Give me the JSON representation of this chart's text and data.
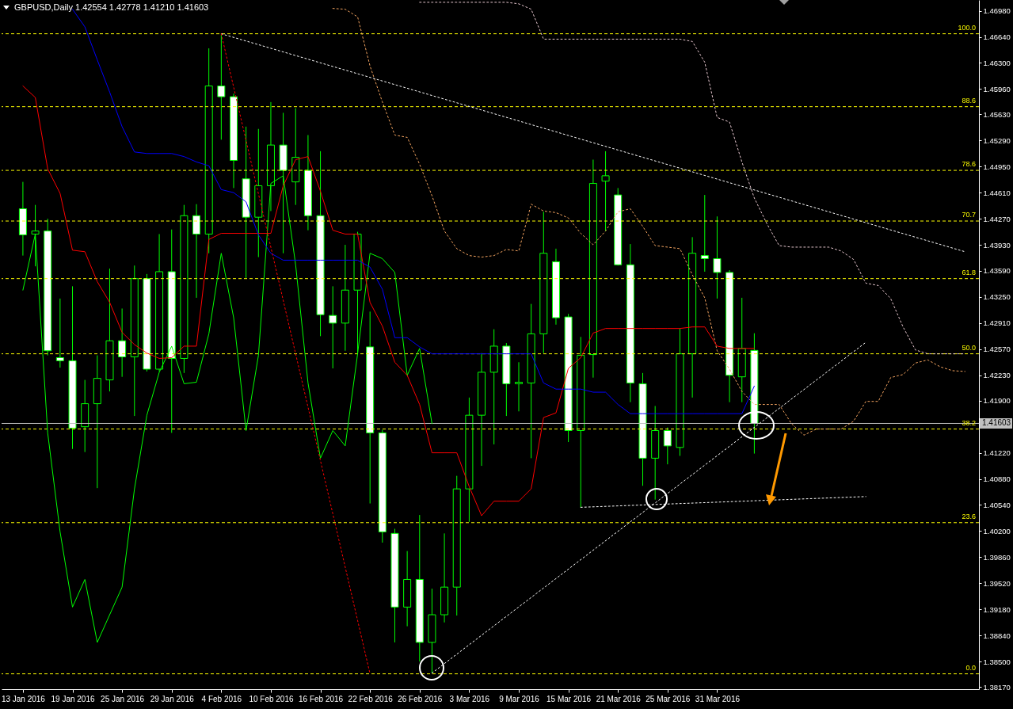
{
  "chart_data": {
    "type": "candlestick",
    "title": "GBPUSD,Daily  1.42554 1.42778 1.41210 1.41603",
    "categories": [
      "13 Jan 2016",
      null,
      null,
      null,
      "19 Jan 2016",
      null,
      null,
      null,
      "25 Jan 2016",
      null,
      null,
      null,
      "29 Jan 2016",
      null,
      null,
      null,
      "4 Feb 2016",
      null,
      null,
      null,
      "10 Feb 2016",
      null,
      null,
      null,
      "16 Feb 2016",
      null,
      null,
      null,
      "22 Feb 2016",
      null,
      null,
      null,
      "26 Feb 2016",
      null,
      null,
      null,
      "3 Mar 2016",
      null,
      null,
      null,
      "9 Mar 2016",
      null,
      null,
      null,
      "15 Mar 2016",
      null,
      null,
      null,
      "21 Mar 2016",
      null,
      null,
      null,
      "25 Mar 2016",
      null,
      null,
      null,
      "31 Mar 2016",
      null,
      null,
      null,
      null,
      null,
      null,
      null,
      null,
      null,
      null,
      null,
      null,
      null,
      null,
      null,
      null,
      null,
      null,
      null,
      null
    ],
    "ohlc": [
      [
        1.444,
        1.4475,
        1.4379,
        1.4406
      ],
      [
        1.4407,
        1.4445,
        1.4365,
        1.4411
      ],
      [
        1.4411,
        1.4427,
        1.4249,
        1.4255
      ],
      [
        1.4246,
        1.4323,
        1.4233,
        1.4242
      ],
      [
        1.4242,
        1.4339,
        1.4127,
        1.4154
      ],
      [
        1.4156,
        1.4217,
        1.4123,
        1.4186
      ],
      [
        1.4186,
        1.4249,
        1.4076,
        1.4219
      ],
      [
        1.4217,
        1.4362,
        1.4202,
        1.4268
      ],
      [
        1.4268,
        1.431,
        1.4221,
        1.4247
      ],
      [
        1.4247,
        1.4366,
        1.417,
        1.4349
      ],
      [
        1.4349,
        1.4355,
        1.4228,
        1.4231
      ],
      [
        1.4231,
        1.4407,
        1.4228,
        1.4358
      ],
      [
        1.4358,
        1.4413,
        1.4148,
        1.4245
      ],
      [
        1.4245,
        1.4445,
        1.4226,
        1.4431
      ],
      [
        1.4431,
        1.4446,
        1.4324,
        1.4407
      ],
      [
        1.4407,
        1.4649,
        1.4382,
        1.46
      ],
      [
        1.46,
        1.4668,
        1.453,
        1.4586
      ],
      [
        1.4586,
        1.459,
        1.4467,
        1.4503
      ],
      [
        1.4479,
        1.4547,
        1.435,
        1.4429
      ],
      [
        1.4429,
        1.4544,
        1.4377,
        1.447
      ],
      [
        1.447,
        1.4579,
        1.4437,
        1.4523
      ],
      [
        1.4523,
        1.4565,
        1.4382,
        1.449
      ],
      [
        1.4475,
        1.4571,
        1.4445,
        1.4507
      ],
      [
        1.449,
        1.4536,
        1.4412,
        1.4431
      ],
      [
        1.4431,
        1.4515,
        1.4274,
        1.4302
      ],
      [
        1.4301,
        1.4339,
        1.4232,
        1.4291
      ],
      [
        1.4291,
        1.4393,
        1.4255,
        1.4334
      ],
      [
        1.4334,
        1.441,
        1.425,
        1.4407
      ],
      [
        1.426,
        1.4306,
        1.4056,
        1.4148
      ],
      [
        1.4148,
        1.4152,
        1.4005,
        1.4019
      ],
      [
        1.4017,
        1.4023,
        1.3875,
        1.3921
      ],
      [
        1.3921,
        1.3994,
        1.3896,
        1.3957
      ],
      [
        1.3957,
        1.4041,
        1.385,
        1.3875
      ],
      [
        1.3875,
        1.3945,
        1.3835,
        1.3911
      ],
      [
        1.3911,
        1.4017,
        1.3901,
        1.3947
      ],
      [
        1.3947,
        1.4092,
        1.391,
        1.4075
      ],
      [
        1.4075,
        1.4194,
        1.4032,
        1.4171
      ],
      [
        1.4171,
        1.4252,
        1.4105,
        1.4227
      ],
      [
        1.4227,
        1.4283,
        1.4133,
        1.4261
      ],
      [
        1.4261,
        1.4265,
        1.417,
        1.4212
      ],
      [
        1.4212,
        1.424,
        1.4176,
        1.4214
      ],
      [
        1.4213,
        1.4316,
        1.4115,
        1.4277
      ],
      [
        1.4277,
        1.4436,
        1.4252,
        1.4382
      ],
      [
        1.4371,
        1.4388,
        1.4289,
        1.4298
      ],
      [
        1.4299,
        1.4303,
        1.4136,
        1.4151
      ],
      [
        1.4151,
        1.4273,
        1.4051,
        1.4249
      ],
      [
        1.425,
        1.4504,
        1.422,
        1.4473
      ],
      [
        1.4476,
        1.4515,
        1.4411,
        1.4483
      ],
      [
        1.4458,
        1.4467,
        1.4366,
        1.4367
      ],
      [
        1.4367,
        1.4394,
        1.4188,
        1.4213
      ],
      [
        1.4212,
        1.4226,
        1.4079,
        1.4115
      ],
      [
        1.4115,
        1.4183,
        1.4061,
        1.4151
      ],
      [
        1.4151,
        1.4155,
        1.4107,
        1.4131
      ],
      [
        1.4129,
        1.4284,
        1.4118,
        1.4251
      ],
      [
        1.4251,
        1.4403,
        1.4194,
        1.4382
      ],
      [
        1.4379,
        1.4458,
        1.4358,
        1.4375
      ],
      [
        1.4375,
        1.443,
        1.4323,
        1.4357
      ],
      [
        1.4357,
        1.436,
        1.4188,
        1.4223
      ],
      [
        1.4221,
        1.4324,
        1.4188,
        1.4258
      ],
      [
        1.42554,
        1.42778,
        1.4121,
        1.41603
      ],
      null,
      null,
      null,
      null,
      null,
      null,
      null,
      null,
      null,
      null,
      null,
      null,
      null,
      null,
      null,
      null,
      null
    ],
    "series": [
      {
        "type": "line",
        "color": "#f4a460",
        "line_style": "dotted",
        "values": [
          null,
          null,
          null,
          null,
          null,
          null,
          null,
          null,
          null,
          null,
          null,
          null,
          null,
          null,
          null,
          null,
          null,
          null,
          null,
          null,
          null,
          null,
          null,
          null,
          null,
          1.4701,
          1.47,
          1.469,
          1.4626,
          1.4579,
          1.4536,
          1.4533,
          1.4498,
          1.4457,
          1.4411,
          1.4388,
          1.4379,
          1.4377,
          1.4379,
          1.4387,
          1.4385,
          1.4446,
          1.4437,
          1.4435,
          1.4428,
          1.4408,
          1.4393,
          1.4411,
          1.4436,
          1.444,
          1.4417,
          1.4392,
          1.439,
          1.4388,
          1.4354,
          1.4324,
          1.4255,
          1.4231,
          1.4202,
          1.4185,
          1.4185,
          1.4185,
          1.416,
          1.4145,
          1.4153,
          1.4153,
          1.4153,
          1.4163,
          1.4189,
          1.4189,
          1.422,
          1.4224,
          1.4239,
          1.4243,
          1.4234,
          1.4229,
          1.4228
        ]
      },
      {
        "type": "line",
        "color": "#e8c8d0",
        "line_style": "dotted",
        "values": [
          null,
          null,
          null,
          null,
          null,
          null,
          null,
          null,
          null,
          null,
          null,
          null,
          null,
          null,
          null,
          null,
          null,
          null,
          null,
          null,
          null,
          null,
          null,
          null,
          null,
          null,
          null,
          null,
          null,
          null,
          null,
          null,
          1.4709,
          1.4709,
          1.4709,
          1.4709,
          1.4709,
          1.4709,
          1.4709,
          1.4709,
          1.4707,
          1.47,
          1.4661,
          1.4661,
          1.4661,
          1.4661,
          1.4661,
          1.4661,
          1.4661,
          1.4661,
          1.4661,
          1.4661,
          1.4661,
          1.4661,
          1.4658,
          1.4631,
          1.4559,
          1.4553,
          1.4501,
          1.4454,
          1.4421,
          1.4392,
          1.439,
          1.439,
          1.439,
          1.439,
          1.4385,
          1.4374,
          1.4343,
          1.434,
          1.4323,
          1.4286,
          1.4256,
          1.4251,
          1.4251,
          1.4251,
          1.4251
        ]
      },
      {
        "type": "line",
        "color": "#00ff00",
        "line_style": "solid",
        "values": [
          1.4334,
          1.4407,
          1.4148,
          1.4019,
          1.3921,
          1.3957,
          1.3875,
          1.3911,
          1.3947,
          1.4075,
          1.4171,
          1.4227,
          1.4261,
          1.4212,
          1.4214,
          1.4277,
          1.4382,
          1.4298,
          1.4151,
          1.4249,
          1.4473,
          1.4483,
          1.4367,
          1.4213,
          1.4115,
          1.4151,
          1.4131,
          1.4251,
          1.4382,
          1.4375,
          1.4357,
          1.4223,
          1.4258,
          1.416,
          null,
          null,
          null,
          null,
          null,
          null,
          null,
          null,
          null,
          null,
          null,
          null,
          null,
          null,
          null,
          null,
          null,
          null,
          null,
          null,
          null,
          null,
          null,
          null,
          null,
          null,
          null,
          null,
          null,
          null,
          null,
          null,
          null,
          null,
          null,
          null,
          null,
          null,
          null,
          null,
          null,
          null,
          null
        ]
      },
      {
        "type": "line",
        "color": "#ff0000",
        "line_style": "solid",
        "values": [
          1.46,
          1.4585,
          1.4492,
          1.446,
          1.4386,
          1.4384,
          1.4345,
          1.4318,
          1.4279,
          1.4263,
          1.4252,
          1.4245,
          1.4246,
          1.4261,
          1.4261,
          1.44,
          1.4408,
          1.4408,
          1.4408,
          1.4408,
          1.4408,
          1.447,
          1.4504,
          1.4508,
          1.4463,
          1.4412,
          1.4407,
          1.4407,
          1.4318,
          1.4287,
          1.424,
          1.4223,
          1.4185,
          1.4122,
          1.4122,
          1.4122,
          1.4078,
          1.404,
          1.4059,
          1.4059,
          1.4059,
          1.4075,
          1.4168,
          1.4174,
          1.4232,
          1.4246,
          1.4278,
          1.4284,
          1.4284,
          1.4284,
          1.4284,
          1.4284,
          1.4284,
          1.4284,
          1.4286,
          1.4286,
          1.4261,
          1.4258,
          1.4258,
          1.4258,
          null,
          null,
          null,
          null,
          null,
          null,
          null,
          null,
          null,
          null,
          null,
          null,
          null,
          null,
          null,
          null,
          null
        ]
      },
      {
        "type": "line",
        "color": "#0000ff",
        "line_style": "solid",
        "values": [
          null,
          null,
          null,
          null,
          1.47,
          1.4677,
          1.4634,
          1.4592,
          1.4547,
          1.4514,
          1.4512,
          1.4512,
          1.4512,
          1.4508,
          1.4501,
          1.4496,
          1.4465,
          1.4461,
          1.4449,
          1.4406,
          1.4382,
          1.4373,
          1.4373,
          1.4373,
          1.4373,
          1.4373,
          1.4373,
          1.4373,
          1.4364,
          1.4335,
          1.4272,
          1.4272,
          1.426,
          1.4251,
          1.4251,
          1.4251,
          1.4251,
          1.4251,
          1.4251,
          1.4251,
          1.4251,
          1.4251,
          1.4213,
          1.4205,
          1.4205,
          1.4205,
          1.4201,
          1.4201,
          1.4185,
          1.4173,
          1.4173,
          1.4173,
          1.4173,
          1.4173,
          1.4173,
          1.4173,
          1.4173,
          1.4173,
          1.4173,
          1.4209,
          null,
          null,
          null,
          null,
          null,
          null,
          null,
          null,
          null,
          null,
          null,
          null,
          null,
          null,
          null,
          null,
          null
        ]
      },
      {
        "type": "line",
        "color": "#ffffff",
        "line_style": "dotted",
        "values": [
          null,
          null,
          null,
          null,
          null,
          null,
          null,
          null,
          null,
          null,
          null,
          null,
          null,
          null,
          null,
          null,
          1.4668,
          null,
          null,
          null,
          null,
          null,
          null,
          null,
          null,
          null,
          null,
          null,
          null,
          null,
          null,
          null,
          null,
          null,
          null,
          null,
          null,
          null,
          null,
          null,
          null,
          null,
          null,
          null,
          null,
          null,
          null,
          null,
          null,
          null,
          null,
          null,
          null,
          null,
          null,
          null,
          null,
          null,
          null,
          null,
          null,
          null,
          null,
          null,
          null,
          null,
          null,
          null,
          null,
          null,
          null,
          null,
          null,
          null,
          null,
          null,
          1.4384
        ]
      },
      {
        "type": "line",
        "color": "#ff0000",
        "line_style": "dotted",
        "values": [
          null,
          null,
          null,
          null,
          null,
          null,
          null,
          null,
          null,
          null,
          null,
          null,
          null,
          null,
          null,
          null,
          1.4668,
          null,
          null,
          null,
          null,
          null,
          null,
          null,
          null,
          null,
          null,
          null,
          1.3834,
          null,
          null,
          null,
          null,
          null,
          null,
          null,
          null,
          null,
          null,
          null,
          null,
          null,
          null,
          null,
          null,
          null,
          null,
          null,
          null,
          null,
          null,
          null,
          null,
          null,
          null,
          null,
          null,
          null,
          null,
          null,
          null,
          null,
          null,
          null,
          null,
          null,
          null,
          null,
          null,
          null,
          null,
          null,
          null,
          null,
          null,
          null,
          null
        ]
      },
      {
        "type": "line",
        "color": "#ffffff",
        "line_style": "dotted",
        "values": [
          null,
          null,
          null,
          null,
          null,
          null,
          null,
          null,
          null,
          null,
          null,
          null,
          null,
          null,
          null,
          null,
          null,
          null,
          null,
          null,
          null,
          null,
          null,
          null,
          null,
          null,
          null,
          null,
          null,
          null,
          null,
          null,
          null,
          1.3835,
          null,
          null,
          null,
          null,
          null,
          null,
          null,
          null,
          null,
          null,
          null,
          null,
          null,
          null,
          null,
          null,
          null,
          null,
          null,
          null,
          null,
          null,
          null,
          null,
          null,
          null,
          null,
          null,
          null,
          null,
          null,
          null,
          null,
          null,
          1.4266,
          null,
          null,
          null,
          null,
          null,
          null,
          null,
          null
        ]
      },
      {
        "type": "line",
        "color": "#ffffff",
        "line_style": "dotted",
        "values": [
          null,
          null,
          null,
          null,
          null,
          null,
          null,
          null,
          null,
          null,
          null,
          null,
          null,
          null,
          null,
          null,
          null,
          null,
          null,
          null,
          null,
          null,
          null,
          null,
          null,
          null,
          null,
          null,
          null,
          null,
          null,
          null,
          null,
          null,
          null,
          null,
          null,
          null,
          null,
          null,
          null,
          null,
          null,
          null,
          null,
          1.4051,
          null,
          null,
          null,
          null,
          null,
          null,
          null,
          null,
          null,
          null,
          null,
          null,
          null,
          null,
          null,
          null,
          null,
          null,
          null,
          null,
          null,
          null,
          1.4065,
          null,
          null,
          null,
          null,
          null,
          null,
          null,
          null
        ]
      }
    ],
    "ylim": [
      1.3814,
      1.4712
    ],
    "yticks": [
      {
        "value": 1.4698,
        "label": "1.46980"
      },
      {
        "value": 1.4664,
        "label": "1.46640"
      },
      {
        "value": 1.463,
        "label": "1.46300"
      },
      {
        "value": 1.4596,
        "label": "1.45960"
      },
      {
        "value": 1.4563,
        "label": "1.45630"
      },
      {
        "value": 1.4529,
        "label": "1.45290"
      },
      {
        "value": 1.4495,
        "label": "1.44950"
      },
      {
        "value": 1.4461,
        "label": "1.44610"
      },
      {
        "value": 1.4427,
        "label": "1.44270"
      },
      {
        "value": 1.4393,
        "label": "1.43930"
      },
      {
        "value": 1.4359,
        "label": "1.43590"
      },
      {
        "value": 1.4325,
        "label": "1.43250"
      },
      {
        "value": 1.4291,
        "label": "1.42910"
      },
      {
        "value": 1.4257,
        "label": "1.42570"
      },
      {
        "value": 1.4223,
        "label": "1.42230"
      },
      {
        "value": 1.419,
        "label": "1.41900"
      },
      {
        "value": 1.4122,
        "label": "1.41220"
      },
      {
        "value": 1.4088,
        "label": "1.40880"
      },
      {
        "value": 1.4054,
        "label": "1.40540"
      },
      {
        "value": 1.402,
        "label": "1.40200"
      },
      {
        "value": 1.3986,
        "label": "1.39860"
      },
      {
        "value": 1.3952,
        "label": "1.39520"
      },
      {
        "value": 1.3918,
        "label": "1.39180"
      },
      {
        "value": 1.3884,
        "label": "1.38840"
      },
      {
        "value": 1.385,
        "label": "1.38500"
      },
      {
        "value": 1.3817,
        "label": "1.38170"
      }
    ],
    "ref_lines": [
      {
        "axis": "y",
        "value": 1.4668,
        "color": "#ffff00",
        "line_style": "dashed"
      },
      {
        "axis": "y",
        "value": 1.4573,
        "color": "#ffff00",
        "line_style": "dashed"
      },
      {
        "axis": "y",
        "value": 1.449,
        "color": "#ffff00",
        "line_style": "dashed"
      },
      {
        "axis": "y",
        "value": 1.4424,
        "color": "#ffff00",
        "line_style": "dashed"
      },
      {
        "axis": "y",
        "value": 1.4349,
        "color": "#ffff00",
        "line_style": "dashed"
      },
      {
        "axis": "y",
        "value": 1.4251,
        "color": "#ffff00",
        "line_style": "dashed"
      },
      {
        "axis": "y",
        "value": 1.4153,
        "color": "#ffff00",
        "line_style": "dashed"
      },
      {
        "axis": "y",
        "value": 1.4031,
        "color": "#ffff00",
        "line_style": "dashed"
      },
      {
        "axis": "y",
        "value": 1.3834,
        "color": "#ffff00",
        "line_style": "dashed"
      },
      {
        "axis": "y",
        "value": 1.41603,
        "label": "1.41603",
        "color": "#c0c0c0",
        "line_style": "solid"
      }
    ],
    "annotations": [
      "100.0",
      "88.6",
      "78.6",
      "70.7",
      "61.8",
      "50.0",
      "38.2",
      "23.6",
      "0.0"
    ]
  }
}
